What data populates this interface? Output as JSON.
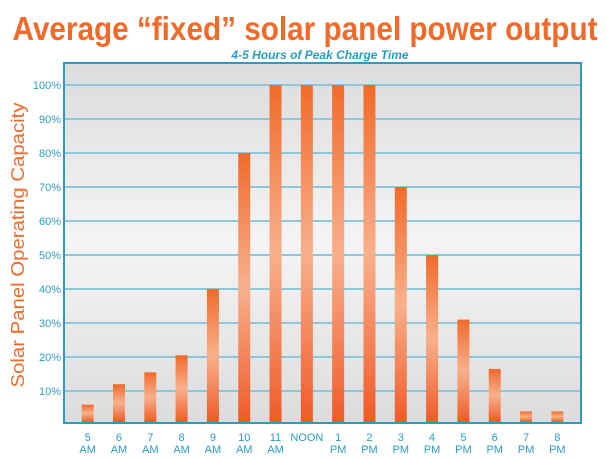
{
  "chart_data": {
    "type": "bar",
    "title": "Average “fixed” solar panel power output",
    "subtitle": "4-5 Hours of Peak Charge Time",
    "ylabel": "Solar Panel Operating Capacity",
    "xlabel": "",
    "ylim": [
      0,
      100
    ],
    "yticks": [
      "10%",
      "20%",
      "30%",
      "40%",
      "50%",
      "60%",
      "70%",
      "80%",
      "90%",
      "100%"
    ],
    "grid": true,
    "categories": [
      [
        "5",
        "AM"
      ],
      [
        "6",
        "AM"
      ],
      [
        "7",
        "AM"
      ],
      [
        "8",
        "AM"
      ],
      [
        "9",
        "AM"
      ],
      [
        "10",
        "AM"
      ],
      [
        "11",
        "AM"
      ],
      [
        "NOON",
        ""
      ],
      [
        "1",
        "PM"
      ],
      [
        "2",
        "PM"
      ],
      [
        "3",
        "PM"
      ],
      [
        "4",
        "PM"
      ],
      [
        "5",
        "PM"
      ],
      [
        "6",
        "PM"
      ],
      [
        "7",
        "PM"
      ],
      [
        "8",
        "PM"
      ]
    ],
    "values": [
      6,
      12,
      15.5,
      20.5,
      40,
      80,
      100,
      100,
      100,
      100,
      70,
      50,
      31,
      16.5,
      4,
      4
    ],
    "colors": {
      "bar": "#f26a2a",
      "bar_light": "#f8b08c",
      "axis": "#2a9cc4",
      "grid": "#8cc8da",
      "title": "#f26a2a"
    }
  }
}
